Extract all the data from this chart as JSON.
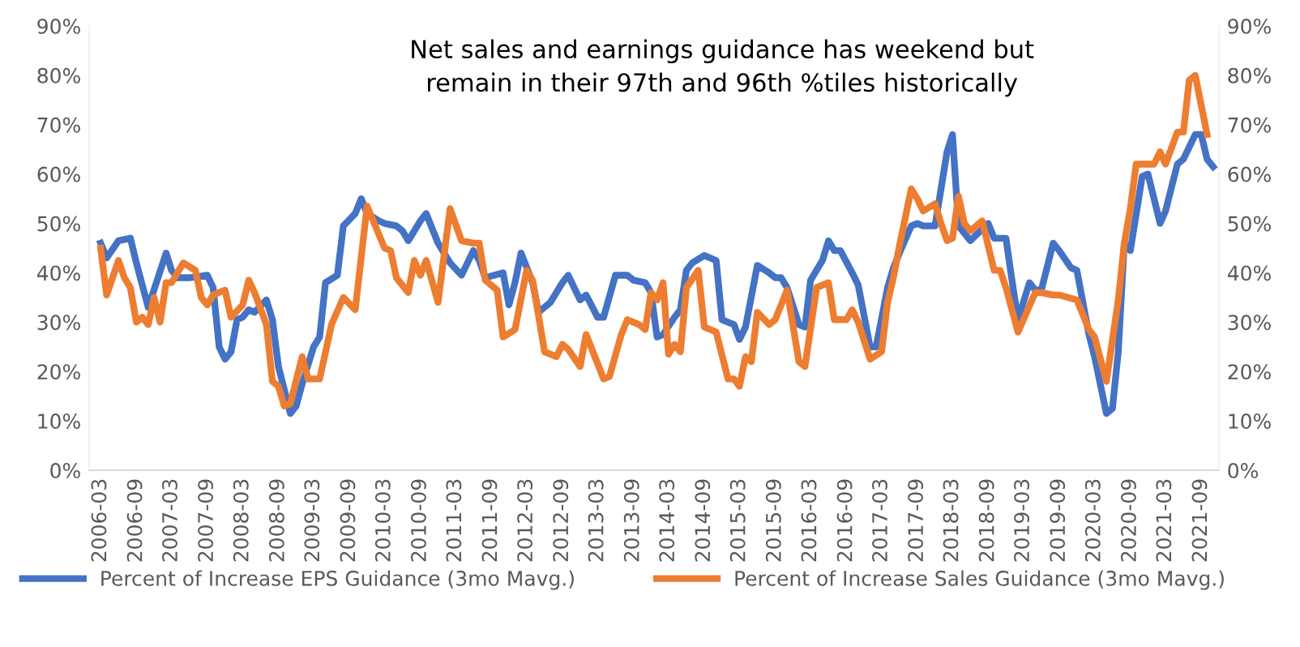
{
  "chart_data": {
    "type": "line",
    "title": "Net sales and earnings guidance has weekend but\nremain in their 97th and 96th %tiles historically",
    "series": [
      {
        "name": "Percent of Increase EPS Guidance (3mo Mavg.)",
        "color": "#4472c4",
        "x": [
          "2006-03",
          "2006-04",
          "2006-06",
          "2006-08",
          "2006-09",
          "2006-11",
          "2007-02",
          "2007-03",
          "2007-04",
          "2007-06",
          "2007-09",
          "2007-10",
          "2007-11",
          "2007-12",
          "2008-01",
          "2008-02",
          "2008-03",
          "2008-04",
          "2008-05",
          "2008-07",
          "2008-08",
          "2008-09",
          "2008-11",
          "2008-12",
          "2009-01",
          "2009-03",
          "2009-04",
          "2009-05",
          "2009-07",
          "2009-08",
          "2009-10",
          "2009-11",
          "2009-12",
          "2010-02",
          "2010-03",
          "2010-05",
          "2010-06",
          "2010-07",
          "2010-09",
          "2010-10",
          "2010-12",
          "2011-02",
          "2011-04",
          "2011-06",
          "2011-07",
          "2011-08",
          "2011-11",
          "2011-12",
          "2012-01",
          "2012-02",
          "2012-04",
          "2012-05",
          "2012-07",
          "2012-09",
          "2012-10",
          "2012-12",
          "2013-01",
          "2013-03",
          "2013-04",
          "2013-06",
          "2013-08",
          "2013-09",
          "2013-11",
          "2013-12",
          "2014-01",
          "2014-02",
          "2014-04",
          "2014-05",
          "2014-06",
          "2014-07",
          "2014-09",
          "2014-11",
          "2014-12",
          "2015-02",
          "2015-03",
          "2015-04",
          "2015-06",
          "2015-08",
          "2015-09",
          "2015-10",
          "2015-11",
          "2016-01",
          "2016-02",
          "2016-03",
          "2016-05",
          "2016-06",
          "2016-07",
          "2016-08",
          "2016-10",
          "2016-11",
          "2017-01",
          "2017-02",
          "2017-04",
          "2017-05",
          "2017-06",
          "2017-08",
          "2017-09",
          "2017-10",
          "2017-12",
          "2018-02",
          "2018-03",
          "2018-04",
          "2018-06",
          "2018-09",
          "2018-10",
          "2018-12",
          "2019-01",
          "2019-02",
          "2019-04",
          "2019-05",
          "2019-06",
          "2019-08",
          "2019-09",
          "2019-11",
          "2019-12",
          "2020-02",
          "2020-03",
          "2020-05",
          "2020-06",
          "2020-07",
          "2020-08",
          "2020-09",
          "2020-11",
          "2020-12",
          "2021-02",
          "2021-03",
          "2021-05",
          "2021-06",
          "2021-08",
          "2021-09",
          "2021-10",
          "2021-11"
        ],
        "values": [
          46,
          43,
          46.5,
          47,
          42,
          33,
          44,
          40.5,
          39,
          39,
          39.5,
          37,
          25,
          22.5,
          24,
          30.5,
          31,
          32.5,
          32,
          34.5,
          30.5,
          21,
          11.5,
          13,
          17.5,
          25,
          27,
          38,
          39.5,
          49.5,
          52,
          55,
          52,
          50.5,
          50,
          49.5,
          48.5,
          46.5,
          50.5,
          52,
          46,
          42,
          39.5,
          44.5,
          42.5,
          39,
          40,
          33.5,
          38,
          44,
          38,
          32,
          34,
          38,
          39.5,
          34.5,
          35.5,
          31,
          31,
          39.5,
          39.5,
          38.5,
          38,
          36,
          27,
          27.5,
          31,
          32.5,
          40.5,
          42,
          43.5,
          42.5,
          30.5,
          29.5,
          26.5,
          29,
          41.5,
          40,
          39,
          39,
          37,
          29.5,
          29,
          38.5,
          42.5,
          46.5,
          44.5,
          44.5,
          40,
          37.5,
          25,
          25,
          37,
          41,
          44,
          49.5,
          50,
          49.5,
          49.5,
          64.5,
          68,
          49.5,
          46.5,
          50,
          47,
          47,
          38.5,
          30.5,
          38,
          36.5,
          36.5,
          46,
          44.5,
          41,
          40.5,
          27.5,
          23,
          11.5,
          12.5,
          24,
          46,
          44.5,
          59.5,
          60,
          50,
          52.5,
          62,
          63,
          68,
          68,
          63,
          61.5
        ]
      },
      {
        "name": "Percent of Increase Sales Guidance (3mo Mavg.)",
        "color": "#ed7d31",
        "x": [
          "2006-03",
          "2006-04",
          "2006-06",
          "2006-07",
          "2006-08",
          "2006-09",
          "2006-10",
          "2006-11",
          "2006-12",
          "2007-01",
          "2007-02",
          "2007-03",
          "2007-05",
          "2007-07",
          "2007-08",
          "2007-09",
          "2007-10",
          "2007-12",
          "2008-01",
          "2008-03",
          "2008-04",
          "2008-05",
          "2008-07",
          "2008-08",
          "2008-09",
          "2008-10",
          "2008-11",
          "2009-01",
          "2009-02",
          "2009-04",
          "2009-06",
          "2009-08",
          "2009-10",
          "2009-12",
          "2010-03",
          "2010-04",
          "2010-05",
          "2010-07",
          "2010-08",
          "2010-09",
          "2010-10",
          "2010-12",
          "2011-02",
          "2011-04",
          "2011-06",
          "2011-07",
          "2011-08",
          "2011-10",
          "2011-11",
          "2012-01",
          "2012-03",
          "2012-04",
          "2012-06",
          "2012-08",
          "2012-09",
          "2012-10",
          "2012-12",
          "2013-01",
          "2013-04",
          "2013-05",
          "2013-07",
          "2013-08",
          "2013-10",
          "2013-11",
          "2013-12",
          "2014-01",
          "2014-02",
          "2014-03",
          "2014-04",
          "2014-05",
          "2014-06",
          "2014-08",
          "2014-09",
          "2014-11",
          "2015-01",
          "2015-02",
          "2015-03",
          "2015-04",
          "2015-05",
          "2015-06",
          "2015-08",
          "2015-09",
          "2015-11",
          "2016-01",
          "2016-02",
          "2016-04",
          "2016-06",
          "2016-07",
          "2016-09",
          "2016-10",
          "2016-11",
          "2017-01",
          "2017-03",
          "2017-04",
          "2017-05",
          "2017-06",
          "2017-08",
          "2017-09",
          "2017-10",
          "2017-12",
          "2018-01",
          "2018-02",
          "2018-03",
          "2018-04",
          "2018-05",
          "2018-06",
          "2018-08",
          "2018-10",
          "2018-11",
          "2018-12",
          "2019-02",
          "2019-03",
          "2019-05",
          "2019-06",
          "2019-08",
          "2019-09",
          "2019-12",
          "2020-02",
          "2020-03",
          "2020-05",
          "2020-07",
          "2020-08",
          "2020-09",
          "2020-10",
          "2020-12",
          "2021-01",
          "2021-02",
          "2021-03",
          "2021-05",
          "2021-06",
          "2021-07",
          "2021-08",
          "2021-10"
        ],
        "values": [
          45,
          35.5,
          42.5,
          39,
          37,
          30,
          31,
          29.5,
          35,
          30,
          38,
          38,
          42,
          40.5,
          35,
          33.5,
          35.5,
          36.5,
          31,
          33.5,
          38.5,
          36,
          29.5,
          18,
          17,
          13,
          13.5,
          23,
          18.5,
          18.5,
          29.5,
          35,
          32.5,
          53.5,
          45,
          44.5,
          39,
          36,
          42.5,
          39.5,
          42.5,
          34,
          53,
          46.5,
          46,
          46,
          38.5,
          36.5,
          27,
          28.5,
          40.5,
          38.5,
          24,
          23,
          25.5,
          24.5,
          21,
          27.5,
          18.5,
          19,
          27.5,
          30.5,
          29.5,
          28.5,
          36,
          34.5,
          38,
          23.5,
          25.5,
          24,
          37,
          40.5,
          29,
          28,
          18.5,
          18.5,
          17,
          23,
          22,
          32,
          29.5,
          30.5,
          36.5,
          22,
          21,
          37,
          38,
          30.5,
          30.5,
          32.5,
          30,
          22.5,
          24,
          34,
          39,
          45.5,
          57,
          55,
          52.5,
          54,
          50,
          46.5,
          47,
          55.5,
          50,
          48.5,
          50.5,
          40.5,
          40.5,
          37,
          28,
          30.5,
          36,
          36,
          35.5,
          35.5,
          34.5,
          28.5,
          27,
          18,
          34.5,
          46,
          53,
          62,
          62,
          62,
          64.5,
          62,
          68.5,
          68.5,
          79,
          80,
          68
        ]
      }
    ],
    "xlim": [
      "2006-01",
      "2021-12"
    ],
    "xticks": [
      "2006-03",
      "2006-09",
      "2007-03",
      "2007-09",
      "2008-03",
      "2008-09",
      "2009-03",
      "2009-09",
      "2010-03",
      "2010-09",
      "2011-03",
      "2011-09",
      "2012-03",
      "2012-09",
      "2013-03",
      "2013-09",
      "2014-03",
      "2014-09",
      "2015-03",
      "2015-09",
      "2016-03",
      "2016-09",
      "2017-03",
      "2017-09",
      "2018-03",
      "2018-09",
      "2019-03",
      "2019-09",
      "2020-03",
      "2020-09",
      "2021-03",
      "2021-09"
    ],
    "ylim": [
      0,
      90
    ],
    "yticks": [
      {
        "value": 0,
        "label": "0%"
      },
      {
        "value": 10,
        "label": "10%"
      },
      {
        "value": 20,
        "label": "20%"
      },
      {
        "value": 30,
        "label": "30%"
      },
      {
        "value": 40,
        "label": "40%"
      },
      {
        "value": 50,
        "label": "50%"
      },
      {
        "value": 60,
        "label": "60%"
      },
      {
        "value": 70,
        "label": "70%"
      },
      {
        "value": 80,
        "label": "80%"
      },
      {
        "value": 90,
        "label": "90%"
      }
    ],
    "y2lim": [
      0,
      90
    ],
    "y2ticks": [
      {
        "value": 0,
        "label": "0%"
      },
      {
        "value": 10,
        "label": "10%"
      },
      {
        "value": 20,
        "label": "20%"
      },
      {
        "value": 30,
        "label": "30%"
      },
      {
        "value": 40,
        "label": "40%"
      },
      {
        "value": 50,
        "label": "50%"
      },
      {
        "value": 60,
        "label": "60%"
      },
      {
        "value": 70,
        "label": "70%"
      },
      {
        "value": 80,
        "label": "80%"
      },
      {
        "value": 90,
        "label": "90%"
      }
    ],
    "grid": false,
    "legend": "bottom",
    "marker": "none",
    "line_style": "solid"
  }
}
